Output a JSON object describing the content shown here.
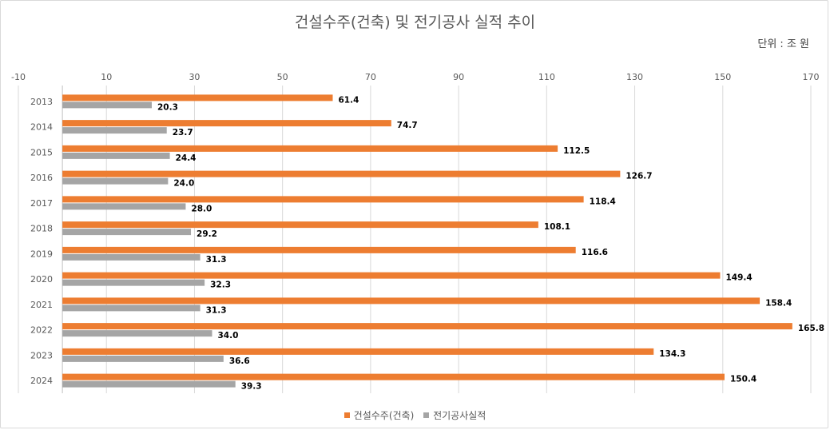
{
  "title": "건설수주(건축) 및 전기공사 실적 추이",
  "unit_label": "단위 : 조 원",
  "chart_data": {
    "type": "bar",
    "orientation": "horizontal",
    "categories": [
      "2013",
      "2014",
      "2015",
      "2016",
      "2017",
      "2018",
      "2019",
      "2020",
      "2021",
      "2022",
      "2023",
      "2024"
    ],
    "series": [
      {
        "name": "건설수주(건축)",
        "color": "#ED7D31",
        "values": [
          61.4,
          74.7,
          112.5,
          126.7,
          118.4,
          108.1,
          116.6,
          149.4,
          158.4,
          165.8,
          134.3,
          150.4
        ],
        "labels": [
          "61.4",
          "74.7",
          "112.5",
          "126.7",
          "118.4",
          "108.1",
          "116.6",
          "149.4",
          "158.4",
          "165.8",
          "134.3",
          "150.4"
        ]
      },
      {
        "name": "전기공사실적",
        "color": "#A5A5A5",
        "values": [
          20.3,
          23.7,
          24.4,
          24.0,
          28.0,
          29.2,
          31.3,
          32.3,
          31.3,
          34.0,
          36.6,
          39.3
        ],
        "labels": [
          "20.3",
          "23.7",
          "24.4",
          "24.0",
          "28.0",
          "29.2",
          "31.3",
          "32.3",
          "31.3",
          "34.0",
          "36.6",
          "39.3"
        ]
      }
    ],
    "xlim": [
      -10,
      170
    ],
    "xticks": [
      -10,
      10,
      30,
      50,
      70,
      90,
      110,
      130,
      150,
      170
    ],
    "xtick_labels": [
      "-10",
      "10",
      "30",
      "50",
      "70",
      "90",
      "110",
      "130",
      "150",
      "170"
    ],
    "bar_origin": 0,
    "grid": true,
    "legend": "bottom"
  }
}
